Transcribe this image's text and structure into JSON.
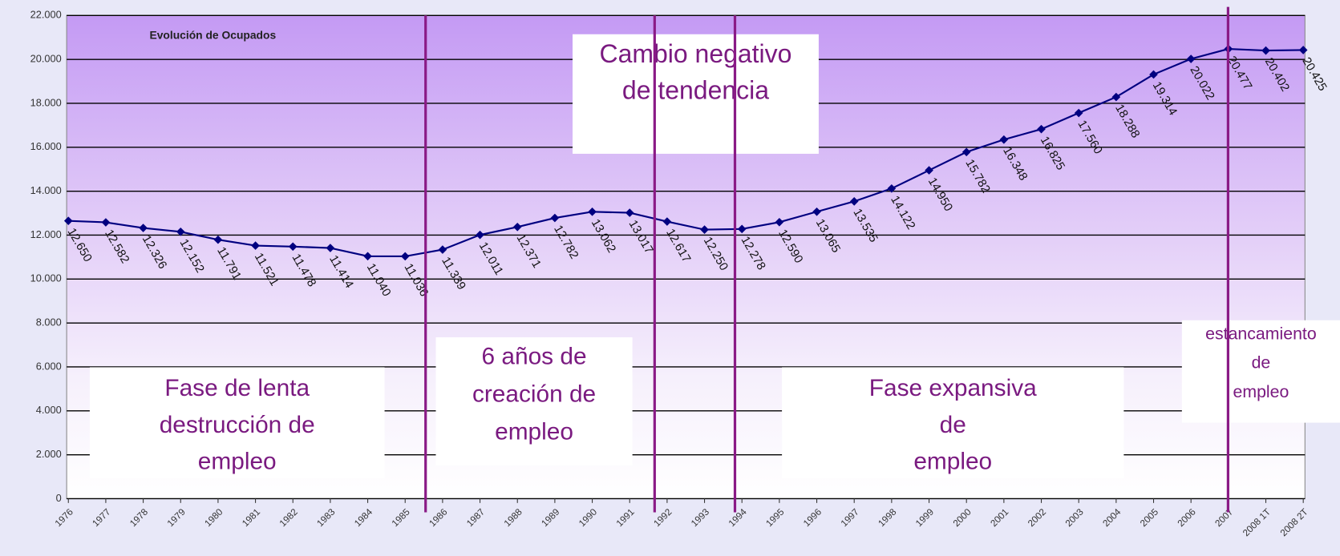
{
  "chart_data": {
    "type": "line",
    "title": "Evolución de Ocupados",
    "categories": [
      "1976",
      "1977",
      "1978",
      "1979",
      "1980",
      "1981",
      "1982",
      "1983",
      "1984",
      "1985",
      "1986",
      "1987",
      "1988",
      "1989",
      "1990",
      "1991",
      "1992",
      "1993",
      "1994",
      "1995",
      "1996",
      "1997",
      "1998",
      "1999",
      "2000",
      "2001",
      "2002",
      "2003",
      "2004",
      "2005",
      "2006",
      "2007",
      "2008 1T",
      "2008 2T"
    ],
    "series": [
      {
        "name": "Ocupados",
        "color": "#000080",
        "values": [
          12650,
          12582,
          12326,
          12152,
          11791,
          11521,
          11478,
          11414,
          11040,
          11036,
          11339,
          12011,
          12371,
          12782,
          13062,
          13017,
          12617,
          12250,
          12278,
          12590,
          13065,
          13535,
          14122,
          14950,
          15782,
          16348,
          16825,
          17560,
          18288,
          19314,
          20022,
          20477,
          20402,
          20425
        ],
        "value_labels": [
          "12.650",
          "12.582",
          "12.326",
          "12.152",
          "11.791",
          "11.521",
          "11.478",
          "11.414",
          "11.040",
          "11.036",
          "11.339",
          "12.011",
          "12.371",
          "12.782",
          "13.062",
          "13.017",
          "12.617",
          "12.250",
          "12.278",
          "12.590",
          "13.065",
          "13.535",
          "14.122",
          "14.950",
          "15.782",
          "16.348",
          "16.825",
          "17.560",
          "18.288",
          "19.314",
          "20.022",
          "20.477",
          "20.402",
          "20.425"
        ]
      }
    ],
    "ylim": [
      0,
      22000
    ],
    "yticks": [
      0,
      {
        "value": 2000,
        "label": "2.000"
      },
      {
        "value": 4000,
        "label": "4.000"
      },
      {
        "value": 6000,
        "label": "6.000"
      },
      {
        "value": 8000,
        "label": "8.000"
      },
      {
        "value": 10000,
        "label": "10.000"
      },
      {
        "value": 12000,
        "label": "12.000"
      },
      {
        "value": 14000,
        "label": "14.000"
      },
      {
        "value": 16000,
        "label": "16.000"
      },
      {
        "value": 18000,
        "label": "18.000"
      },
      {
        "value": 20000,
        "label": "20.000"
      },
      {
        "value": 22000,
        "label": "22.000"
      }
    ],
    "grid": true,
    "annotations": [
      {
        "lines": [
          "Cambio negativo",
          "de tendencia"
        ]
      },
      {
        "lines": [
          "Fase de lenta",
          "destrucción de",
          "empleo"
        ]
      },
      {
        "lines": [
          "6 años de",
          "creación de",
          "empleo"
        ]
      },
      {
        "lines": [
          "Fase expansiva",
          "de",
          "empleo"
        ]
      },
      {
        "lines": [
          "estancamiento",
          "de",
          "empleo"
        ]
      }
    ]
  }
}
